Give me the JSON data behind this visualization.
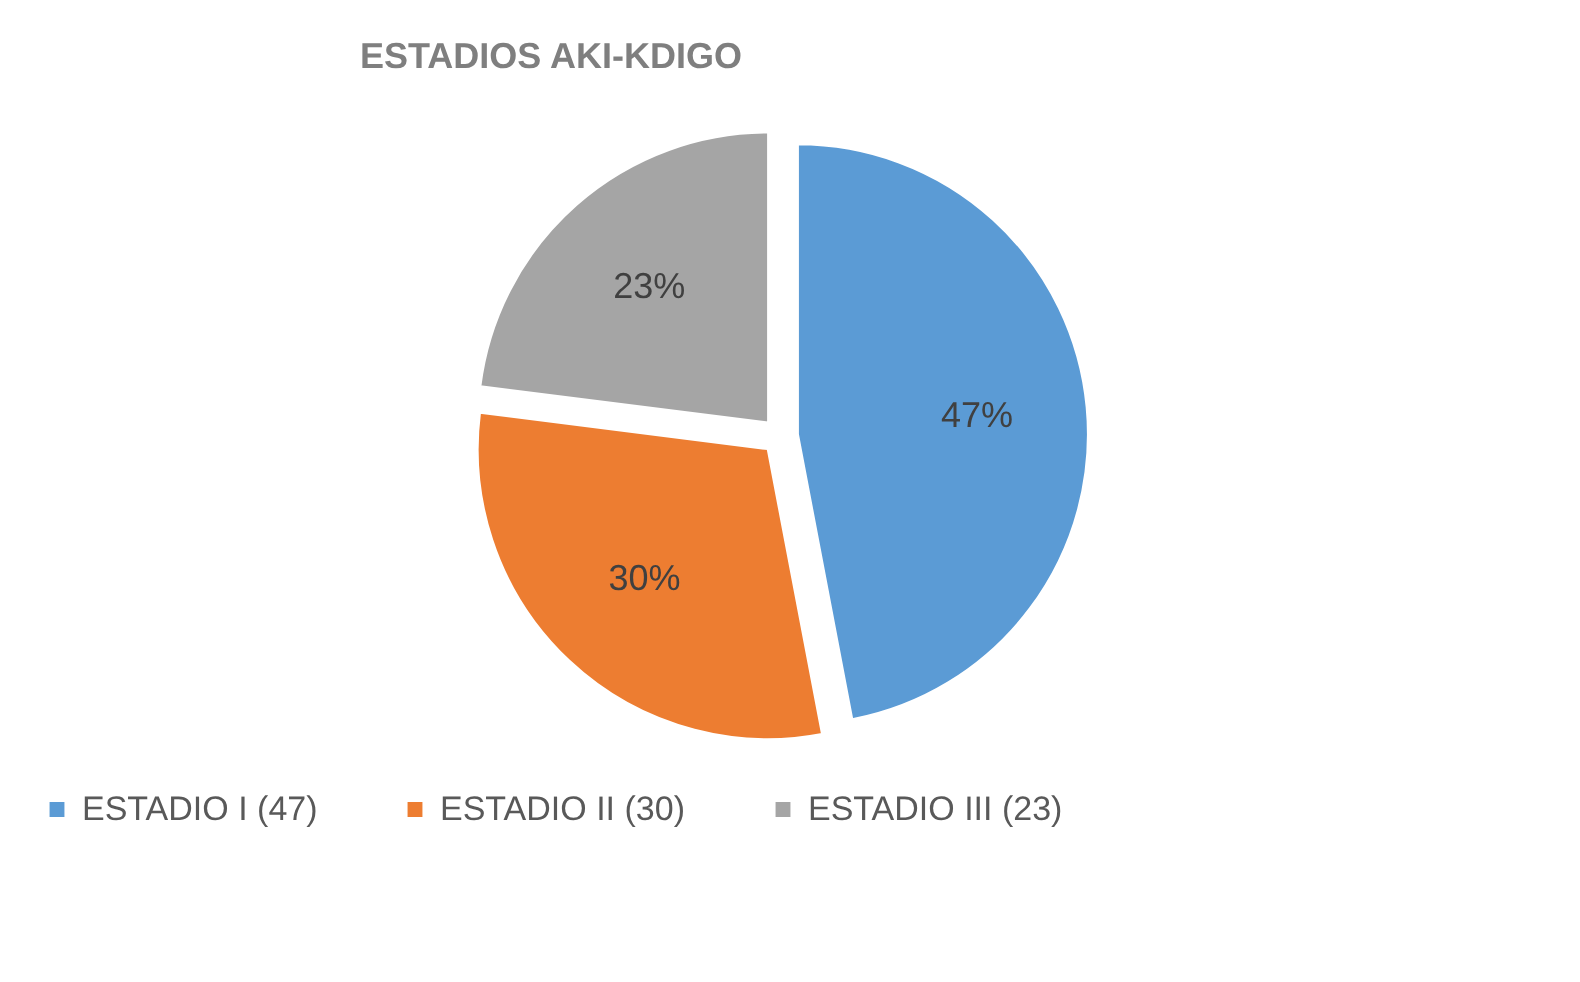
{
  "chart_data": {
    "type": "pie",
    "title": "ESTADIOS AKI-KDIGO",
    "categories": [
      "ESTADIO I (47)",
      "ESTADIO II (30)",
      "ESTADIO III (23)"
    ],
    "values": [
      47,
      30,
      23
    ],
    "colors": [
      "#5b9bd5",
      "#ed7d31",
      "#a5a5a5"
    ],
    "value_labels": [
      "47%",
      "30%",
      "23%"
    ],
    "legend": "bottom"
  }
}
